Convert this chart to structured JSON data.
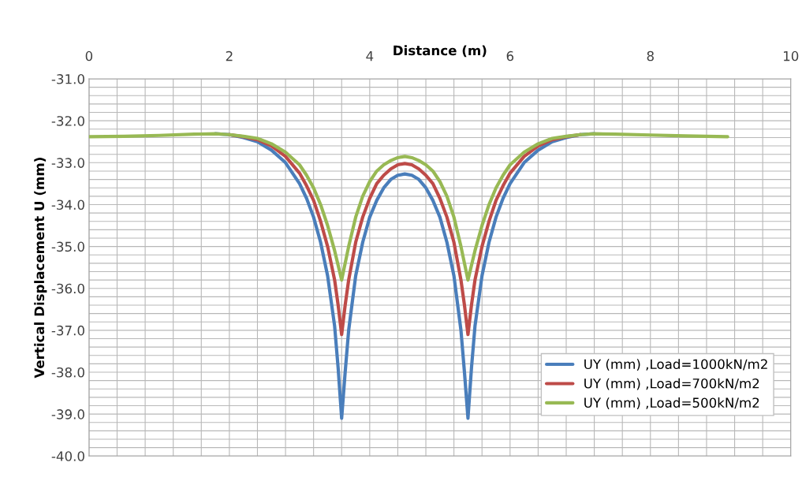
{
  "chart_data": {
    "type": "line",
    "xlabel": "Distance (m)",
    "ylabel": "Vertical Displacement U (mm)",
    "x": [
      0,
      0.5,
      1,
      1.5,
      1.8,
      2.0,
      2.2,
      2.4,
      2.6,
      2.8,
      3.0,
      3.1,
      3.2,
      3.3,
      3.4,
      3.5,
      3.55,
      3.6,
      3.65,
      3.7,
      3.8,
      3.9,
      4.0,
      4.1,
      4.2,
      4.3,
      4.4,
      4.5,
      4.6,
      4.7,
      4.8,
      4.9,
      5.0,
      5.1,
      5.2,
      5.3,
      5.35,
      5.4,
      5.45,
      5.5,
      5.6,
      5.7,
      5.8,
      5.9,
      6.0,
      6.2,
      6.4,
      6.6,
      6.8,
      7.0,
      7.2,
      7.5,
      8,
      8.5,
      9.1
    ],
    "series": [
      {
        "name": "UY (mm) ,Load=1000kN/m2",
        "color": "#4a7ebb",
        "values": [
          null,
          null,
          null,
          null,
          -32.31,
          -32.33,
          -32.4,
          -32.5,
          -32.7,
          -33.0,
          -33.5,
          -33.85,
          -34.3,
          -34.9,
          -35.7,
          -36.9,
          -37.9,
          -39.1,
          -38.0,
          -37.0,
          -35.7,
          -34.9,
          -34.3,
          -33.9,
          -33.6,
          -33.4,
          -33.3,
          -33.27,
          -33.3,
          -33.4,
          -33.6,
          -33.9,
          -34.3,
          -34.9,
          -35.7,
          -37.0,
          -38.0,
          -39.1,
          -37.9,
          -36.9,
          -35.7,
          -34.9,
          -34.3,
          -33.85,
          -33.5,
          -33.0,
          -32.7,
          -32.5,
          -32.4,
          -32.33,
          -32.31,
          null,
          null,
          null,
          null
        ]
      },
      {
        "name": "UY (mm) ,Load=700kN/m2",
        "color": "#be4b48",
        "values": [
          null,
          null,
          null,
          null,
          null,
          -32.33,
          -32.38,
          -32.45,
          -32.6,
          -32.85,
          -33.25,
          -33.55,
          -33.9,
          -34.4,
          -35.0,
          -35.8,
          -36.4,
          -37.1,
          -36.4,
          -35.8,
          -34.9,
          -34.3,
          -33.85,
          -33.5,
          -33.3,
          -33.15,
          -33.05,
          -33.02,
          -33.05,
          -33.15,
          -33.3,
          -33.5,
          -33.85,
          -34.3,
          -34.9,
          -35.8,
          -36.4,
          -37.1,
          -36.4,
          -35.8,
          -35.0,
          -34.4,
          -33.9,
          -33.55,
          -33.25,
          -32.85,
          -32.6,
          -32.45,
          -32.38,
          -32.33,
          null,
          null,
          null,
          null,
          null
        ]
      },
      {
        "name": "UY (mm) ,Load=500kN/m2",
        "color": "#98b954",
        "values": [
          -32.38,
          -32.37,
          -32.35,
          -32.32,
          -32.31,
          -32.33,
          -32.37,
          -32.42,
          -32.55,
          -32.75,
          -33.05,
          -33.3,
          -33.6,
          -34.0,
          -34.5,
          -35.1,
          -35.45,
          -35.8,
          -35.4,
          -35.0,
          -34.3,
          -33.8,
          -33.45,
          -33.2,
          -33.05,
          -32.95,
          -32.88,
          -32.85,
          -32.88,
          -32.95,
          -33.05,
          -33.2,
          -33.45,
          -33.8,
          -34.3,
          -35.0,
          -35.4,
          -35.8,
          -35.45,
          -35.1,
          -34.5,
          -34.0,
          -33.6,
          -33.3,
          -33.05,
          -32.75,
          -32.55,
          -32.42,
          -32.37,
          -32.33,
          -32.31,
          -32.32,
          -32.34,
          -32.36,
          -32.38
        ]
      }
    ],
    "xlim": [
      0,
      10
    ],
    "xticks": [
      0,
      {
        "value": 0.4,
        "label": null
      },
      {
        "value": 0.8,
        "label": null
      },
      {
        "value": 1.2,
        "label": null
      },
      {
        "value": 1.6,
        "label": null
      },
      2,
      {
        "value": 2.4,
        "label": null
      },
      {
        "value": 2.8,
        "label": null
      },
      {
        "value": 3.2,
        "label": null
      },
      {
        "value": 3.6,
        "label": null
      },
      4,
      {
        "value": 4.4,
        "label": null
      },
      {
        "value": 4.8,
        "label": null
      },
      {
        "value": 5.2,
        "label": null
      },
      {
        "value": 5.6,
        "label": null
      },
      6,
      {
        "value": 6.4,
        "label": null
      },
      {
        "value": 6.8,
        "label": null
      },
      {
        "value": 7.2,
        "label": null
      },
      {
        "value": 7.6,
        "label": null
      },
      8,
      {
        "value": 8.4,
        "label": null
      },
      {
        "value": 8.8,
        "label": null
      },
      {
        "value": 9.2,
        "label": null
      },
      {
        "value": 9.6,
        "label": null
      },
      10
    ],
    "ylim": [
      -40,
      -31
    ],
    "yticks": [
      {
        "value": -40,
        "label": "-40.0"
      },
      {
        "value": -39.8,
        "label": null
      },
      {
        "value": -39.6,
        "label": null
      },
      {
        "value": -39.4,
        "label": null
      },
      {
        "value": -39.2,
        "label": null
      },
      {
        "value": -39,
        "label": "-39.0"
      },
      {
        "value": -38.8,
        "label": null
      },
      {
        "value": -38.6,
        "label": null
      },
      {
        "value": -38.4,
        "label": null
      },
      {
        "value": -38.2,
        "label": null
      },
      {
        "value": -38,
        "label": "-38.0"
      },
      {
        "value": -37.8,
        "label": null
      },
      {
        "value": -37.6,
        "label": null
      },
      {
        "value": -37.4,
        "label": null
      },
      {
        "value": -37.2,
        "label": null
      },
      {
        "value": -37,
        "label": "-37.0"
      },
      {
        "value": -36.8,
        "label": null
      },
      {
        "value": -36.6,
        "label": null
      },
      {
        "value": -36.4,
        "label": null
      },
      {
        "value": -36.2,
        "label": null
      },
      {
        "value": -36,
        "label": "-36.0"
      },
      {
        "value": -35.8,
        "label": null
      },
      {
        "value": -35.6,
        "label": null
      },
      {
        "value": -35.4,
        "label": null
      },
      {
        "value": -35.2,
        "label": null
      },
      {
        "value": -35,
        "label": "-35.0"
      },
      {
        "value": -34.8,
        "label": null
      },
      {
        "value": -34.6,
        "label": null
      },
      {
        "value": -34.4,
        "label": null
      },
      {
        "value": -34.2,
        "label": null
      },
      {
        "value": -34,
        "label": "-34.0"
      },
      {
        "value": -33.8,
        "label": null
      },
      {
        "value": -33.6,
        "label": null
      },
      {
        "value": -33.4,
        "label": null
      },
      {
        "value": -33.2,
        "label": null
      },
      {
        "value": -33,
        "label": "-33.0"
      },
      {
        "value": -32.8,
        "label": null
      },
      {
        "value": -32.6,
        "label": null
      },
      {
        "value": -32.4,
        "label": null
      },
      {
        "value": -32.2,
        "label": null
      },
      {
        "value": -32,
        "label": "-32.0"
      },
      {
        "value": -31.8,
        "label": null
      },
      {
        "value": -31.6,
        "label": null
      },
      {
        "value": -31.4,
        "label": null
      },
      {
        "value": -31.2,
        "label": null
      },
      {
        "value": -31,
        "label": "-31.0"
      }
    ],
    "grid": true,
    "legend": "bottom right",
    "marker": "none",
    "line_style": "solid"
  }
}
